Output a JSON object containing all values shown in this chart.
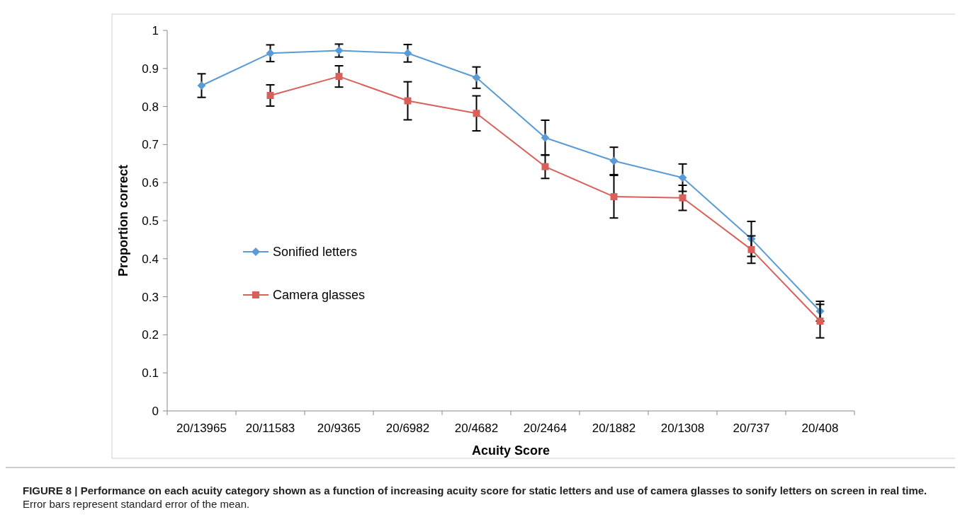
{
  "chart_data": {
    "type": "line",
    "title": "FIGURE 8 | Performance on each acuity category shown as a function of increasing acuity score for static letters and use of camera glasses to sonify letters on screen in real time.",
    "annotations": [
      "Error bars represent standard error of the mean."
    ],
    "xlabel": "Acuity Score",
    "ylabel": "Proportion correct",
    "categories": [
      "20/13965",
      "20/11583",
      "20/9365",
      "20/6982",
      "20/4682",
      "20/2464",
      "20/1882",
      "20/1308",
      "20/737",
      "20/408"
    ],
    "series": [
      {
        "name": "Sonified letters",
        "color": "#5b9bd5",
        "marker": "diamond",
        "values": [
          0.855,
          0.94,
          0.947,
          0.94,
          0.876,
          0.718,
          0.657,
          0.613,
          0.452,
          0.262
        ],
        "errors": [
          0.031,
          0.022,
          0.017,
          0.023,
          0.028,
          0.046,
          0.036,
          0.036,
          0.046,
          0.026
        ]
      },
      {
        "name": "Camera glasses",
        "color": "#d9605a",
        "marker": "square",
        "values": [
          null,
          0.829,
          0.879,
          0.815,
          0.782,
          0.642,
          0.563,
          0.56,
          0.424,
          0.236
        ],
        "errors": [
          null,
          0.028,
          0.028,
          0.05,
          0.046,
          0.031,
          0.056,
          0.033,
          0.036,
          0.044
        ]
      }
    ],
    "ylim": [
      0,
      1
    ],
    "yticks": [
      0,
      0.1,
      0.2,
      0.3,
      0.4,
      0.5,
      0.6,
      0.7,
      0.8,
      0.9,
      1
    ],
    "legend": "left",
    "grid": false
  }
}
